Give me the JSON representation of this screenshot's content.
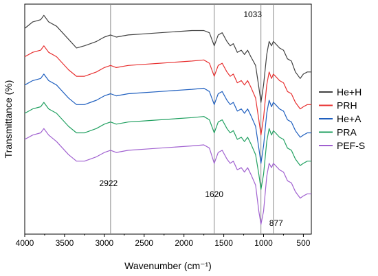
{
  "chart_data": {
    "type": "line",
    "xlabel": "Wavenumber (cm⁻¹)",
    "ylabel": "Transmittance (%)",
    "xlim": [
      4000,
      400
    ],
    "x_reversed": true,
    "y_ticks_shown": false,
    "grid": false,
    "legend_position": "right",
    "x_ticks": [
      4000,
      3500,
      3000,
      2500,
      2000,
      1500,
      1000,
      500
    ],
    "annotations": [
      {
        "label": "2922",
        "x": 2922
      },
      {
        "label": "1620",
        "x": 1620
      },
      {
        "label": "1033",
        "x": 1033
      },
      {
        "label": "877",
        "x": 877
      }
    ],
    "series": [
      {
        "name": "He+H",
        "color": "#404040",
        "x": [
          4000,
          3900,
          3800,
          3760,
          3700,
          3600,
          3450,
          3350,
          3250,
          3100,
          3000,
          2922,
          2850,
          2700,
          2500,
          2300,
          2100,
          1900,
          1750,
          1680,
          1620,
          1570,
          1520,
          1460,
          1420,
          1380,
          1330,
          1280,
          1240,
          1200,
          1160,
          1100,
          1060,
          1033,
          1000,
          960,
          930,
          900,
          877,
          850,
          800,
          750,
          700,
          650,
          600,
          540,
          500,
          450,
          400
        ],
        "y": [
          92,
          95,
          96,
          98,
          95,
          93,
          87,
          83,
          84,
          86,
          88,
          89,
          88,
          89,
          89.5,
          90,
          90.5,
          91,
          91,
          90,
          84,
          89,
          90,
          86,
          84,
          85,
          81,
          82,
          80,
          82,
          79,
          75,
          65,
          58,
          66,
          80,
          86,
          84,
          86,
          85,
          83,
          82,
          78,
          77,
          72,
          69,
          71,
          72,
          72
        ]
      },
      {
        "name": "PRH",
        "color": "#e83030",
        "x": [
          4000,
          3900,
          3800,
          3760,
          3700,
          3600,
          3450,
          3350,
          3250,
          3100,
          3000,
          2922,
          2850,
          2700,
          2500,
          2300,
          2100,
          1900,
          1750,
          1680,
          1620,
          1570,
          1520,
          1460,
          1420,
          1380,
          1330,
          1280,
          1240,
          1200,
          1160,
          1100,
          1060,
          1033,
          1000,
          960,
          930,
          900,
          877,
          850,
          800,
          750,
          700,
          650,
          600,
          540,
          500,
          450,
          400
        ],
        "y": [
          79,
          81,
          82,
          84,
          81,
          79,
          73,
          70,
          70,
          72,
          74,
          75,
          74,
          75,
          75.5,
          76,
          76.5,
          77,
          77.5,
          76,
          70,
          75,
          76,
          72,
          70,
          71,
          67,
          68,
          66,
          68,
          65,
          60,
          50,
          43,
          51,
          66,
          72,
          69,
          71,
          70,
          68,
          67,
          63,
          62,
          58,
          55,
          56,
          57,
          57
        ]
      },
      {
        "name": "He+A",
        "color": "#1f5fbf",
        "x": [
          4000,
          3900,
          3800,
          3760,
          3700,
          3600,
          3450,
          3350,
          3250,
          3100,
          3000,
          2922,
          2850,
          2700,
          2500,
          2300,
          2100,
          1900,
          1750,
          1680,
          1620,
          1570,
          1520,
          1460,
          1420,
          1380,
          1330,
          1280,
          1240,
          1200,
          1160,
          1100,
          1060,
          1033,
          1000,
          960,
          930,
          900,
          877,
          850,
          800,
          750,
          700,
          650,
          600,
          540,
          500,
          450,
          400
        ],
        "y": [
          66,
          68,
          69,
          71,
          68,
          66,
          60,
          57,
          57,
          59,
          61,
          62,
          61,
          62,
          62.5,
          63,
          63.5,
          64,
          64.5,
          63,
          57,
          62,
          63,
          59,
          57,
          58,
          54,
          55,
          53,
          55,
          52,
          47,
          37,
          30,
          38,
          53,
          59,
          56,
          58,
          57,
          55,
          54,
          50,
          49,
          45,
          42,
          43,
          44,
          44
        ]
      },
      {
        "name": "PRA",
        "color": "#20a060",
        "x": [
          4000,
          3900,
          3800,
          3760,
          3700,
          3600,
          3450,
          3350,
          3250,
          3100,
          3000,
          2922,
          2850,
          2700,
          2500,
          2300,
          2100,
          1900,
          1750,
          1680,
          1620,
          1570,
          1520,
          1460,
          1420,
          1380,
          1330,
          1280,
          1240,
          1200,
          1160,
          1100,
          1060,
          1033,
          1000,
          960,
          930,
          900,
          877,
          850,
          800,
          750,
          700,
          650,
          600,
          540,
          500,
          450,
          400
        ],
        "y": [
          53,
          55,
          56,
          58,
          55,
          53,
          47,
          44,
          44,
          46,
          48,
          49,
          48,
          49,
          49.5,
          50,
          50.5,
          51,
          51.5,
          50,
          44,
          49,
          50,
          46,
          44,
          45,
          41,
          42,
          40,
          42,
          39,
          34,
          25,
          18,
          25,
          40,
          46,
          43,
          45,
          44,
          42,
          41,
          37,
          36,
          32,
          29,
          30,
          31,
          31
        ]
      },
      {
        "name": "PEF-S",
        "color": "#a060d0",
        "x": [
          4000,
          3900,
          3800,
          3760,
          3700,
          3600,
          3450,
          3350,
          3250,
          3100,
          3000,
          2922,
          2850,
          2700,
          2500,
          2300,
          2100,
          1900,
          1750,
          1680,
          1620,
          1570,
          1520,
          1460,
          1420,
          1380,
          1330,
          1280,
          1240,
          1200,
          1160,
          1100,
          1060,
          1033,
          1000,
          960,
          930,
          900,
          877,
          850,
          800,
          750,
          700,
          650,
          600,
          540,
          500,
          450,
          400
        ],
        "y": [
          41,
          43,
          44,
          46,
          43,
          40,
          34,
          31,
          31,
          33,
          35,
          36,
          35,
          36,
          36.5,
          37,
          37.5,
          38,
          38.5,
          37,
          30,
          35,
          36,
          32,
          30,
          31,
          27,
          28,
          26,
          28,
          25,
          20,
          8,
          2,
          8,
          24,
          30,
          28,
          30,
          29,
          27,
          26,
          22,
          21,
          17,
          14,
          15,
          16,
          16
        ]
      }
    ]
  }
}
